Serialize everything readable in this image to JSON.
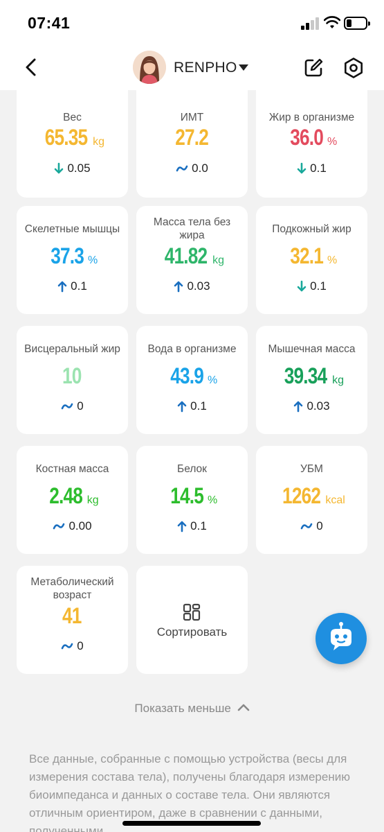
{
  "status_bar": {
    "time": "07:41"
  },
  "header": {
    "profile_name": "RENPHO"
  },
  "metrics": [
    {
      "label": "Вес",
      "value": "65.35",
      "unit": "kg",
      "color": "#f4b731",
      "trend": "down",
      "delta": "0.05"
    },
    {
      "label": "ИМТ",
      "value": "27.2",
      "unit": "",
      "color": "#f4b731",
      "trend": "flat",
      "delta": "0.0"
    },
    {
      "label": "Жир в организме",
      "value": "36.0",
      "unit": "%",
      "color": "#e34b5e",
      "trend": "down",
      "delta": "0.1"
    },
    {
      "label": "Скелетные мышцы",
      "value": "37.3",
      "unit": "%",
      "color": "#1aa3e8",
      "trend": "up",
      "delta": "0.1"
    },
    {
      "label": "Масса тела без жира",
      "value": "41.82",
      "unit": "kg",
      "color": "#2eb56a",
      "trend": "up",
      "delta": "0.03"
    },
    {
      "label": "Подкожный жир",
      "value": "32.1",
      "unit": "%",
      "color": "#f4b731",
      "trend": "down",
      "delta": "0.1"
    },
    {
      "label": "Висцеральный жир",
      "value": "10",
      "unit": "",
      "color": "#9be3b0",
      "trend": "flat",
      "delta": "0"
    },
    {
      "label": "Вода в организме",
      "value": "43.9",
      "unit": "%",
      "color": "#1aa3e8",
      "trend": "up",
      "delta": "0.1"
    },
    {
      "label": "Мышечная масса",
      "value": "39.34",
      "unit": "kg",
      "color": "#18a05a",
      "trend": "up",
      "delta": "0.03"
    },
    {
      "label": "Костная масса",
      "value": "2.48",
      "unit": "kg",
      "color": "#2dbd2d",
      "trend": "flat",
      "delta": "0.00"
    },
    {
      "label": "Белок",
      "value": "14.5",
      "unit": "%",
      "color": "#2dbd2d",
      "trend": "up",
      "delta": "0.1"
    },
    {
      "label": "УБМ",
      "value": "1262",
      "unit": "kcal",
      "color": "#f4b731",
      "trend": "flat",
      "delta": "0"
    },
    {
      "label": "Метаболический возраст",
      "value": "41",
      "unit": "",
      "color": "#f4b731",
      "trend": "flat",
      "delta": "0"
    }
  ],
  "sort_card": {
    "label": "Сортировать",
    "icon": "sort-grid-icon"
  },
  "show_less": "Показать меньше",
  "disclaimer": "Все данные, собранные с помощью устройства (весы для измерения состава тела), получены благодаря измерению биоимпеданса и данных о составе тела. Они являются отличным ориентиром, даже в сравнении с данными, полученными",
  "colors": {
    "trend_up": "#1a6fc0",
    "trend_down": "#19a89b",
    "trend_flat": "#1a6fc0",
    "fab": "#1f8fe0"
  }
}
